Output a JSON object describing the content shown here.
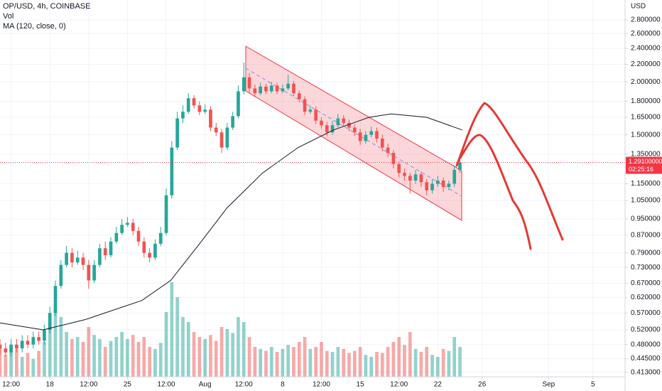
{
  "chart_data": {
    "type": "candlestick",
    "title": "OP/USD, 4h, COINBASE",
    "indicators": [
      "Vol",
      "MA (120, close, 0)"
    ],
    "currency": "USD",
    "x": [
      12.5,
      13,
      13.5,
      14,
      14.5,
      15,
      15.5,
      16,
      16.5,
      17,
      17.5,
      18,
      18.5,
      19,
      19.5,
      20,
      20.5,
      21,
      21.5,
      22,
      22.5,
      23,
      23.5,
      24,
      24.5,
      25,
      25.5,
      26,
      26.5,
      27,
      27.5,
      28,
      28.5,
      29,
      29.5,
      30,
      30.5,
      31,
      31.5,
      32,
      32.5,
      33,
      33.5,
      34,
      34.5,
      35,
      35.5,
      36,
      36.5,
      37,
      37.5,
      38,
      38.5,
      39,
      39.5,
      40,
      40.5,
      41,
      41.5,
      42,
      42.5,
      43,
      43.5,
      44,
      44.5,
      45,
      45.5,
      46,
      46.5,
      47,
      47.5,
      48,
      48.5,
      49,
      49.5,
      50,
      50.5,
      51,
      51.5,
      52,
      52.5,
      53,
      53.5,
      54
    ],
    "open": [
      0.48,
      0.47,
      0.46,
      0.48,
      0.47,
      0.49,
      0.48,
      0.5,
      0.49,
      0.52,
      0.57,
      0.66,
      0.74,
      0.79,
      0.75,
      0.77,
      0.74,
      0.68,
      0.74,
      0.81,
      0.78,
      0.84,
      0.88,
      0.92,
      0.93,
      0.89,
      0.84,
      0.79,
      0.77,
      0.83,
      0.88,
      1.08,
      1.4,
      1.64,
      1.7,
      1.83,
      1.76,
      1.7,
      1.72,
      1.56,
      1.52,
      1.4,
      1.56,
      1.66,
      1.9,
      2.05,
      1.93,
      1.88,
      1.95,
      1.9,
      1.96,
      1.9,
      1.93,
      1.98,
      1.88,
      1.82,
      1.7,
      1.72,
      1.62,
      1.58,
      1.52,
      1.58,
      1.64,
      1.6,
      1.56,
      1.52,
      1.45,
      1.5,
      1.53,
      1.47,
      1.4,
      1.36,
      1.28,
      1.22,
      1.2,
      1.17,
      1.21,
      1.16,
      1.11,
      1.15,
      1.17,
      1.13,
      1.15,
      1.24
    ],
    "high": [
      0.495,
      0.485,
      0.495,
      0.495,
      0.505,
      0.505,
      0.515,
      0.515,
      0.535,
      0.59,
      0.68,
      0.76,
      0.82,
      0.81,
      0.8,
      0.79,
      0.76,
      0.76,
      0.83,
      0.84,
      0.86,
      0.91,
      0.95,
      0.96,
      0.95,
      0.91,
      0.86,
      0.81,
      0.85,
      0.91,
      1.12,
      1.45,
      1.7,
      1.76,
      1.88,
      1.86,
      1.8,
      1.77,
      1.75,
      1.6,
      1.55,
      1.6,
      1.7,
      1.96,
      2.22,
      2.1,
      1.97,
      1.99,
      1.98,
      2.0,
      1.99,
      1.97,
      2.08,
      2.01,
      1.91,
      1.85,
      1.76,
      1.75,
      1.65,
      1.61,
      1.62,
      1.68,
      1.67,
      1.63,
      1.59,
      1.55,
      1.53,
      1.57,
      1.56,
      1.5,
      1.43,
      1.38,
      1.3,
      1.25,
      1.22,
      1.24,
      1.23,
      1.18,
      1.18,
      1.2,
      1.19,
      1.17,
      1.27,
      1.33
    ],
    "low": [
      0.455,
      0.45,
      0.45,
      0.46,
      0.46,
      0.47,
      0.47,
      0.48,
      0.48,
      0.51,
      0.56,
      0.65,
      0.73,
      0.73,
      0.74,
      0.72,
      0.65,
      0.67,
      0.73,
      0.76,
      0.77,
      0.83,
      0.87,
      0.91,
      0.87,
      0.82,
      0.77,
      0.75,
      0.76,
      0.82,
      0.87,
      1.06,
      1.38,
      1.6,
      1.68,
      1.73,
      1.67,
      1.68,
      1.53,
      1.49,
      1.36,
      1.38,
      1.54,
      1.64,
      1.87,
      1.88,
      1.84,
      1.86,
      1.87,
      1.88,
      1.87,
      1.88,
      1.91,
      1.85,
      1.79,
      1.67,
      1.68,
      1.59,
      1.55,
      1.49,
      1.5,
      1.56,
      1.57,
      1.53,
      1.49,
      1.42,
      1.43,
      1.48,
      1.44,
      1.37,
      1.33,
      1.25,
      1.19,
      1.17,
      1.09,
      1.15,
      1.13,
      1.08,
      1.09,
      1.13,
      1.1,
      1.11,
      1.13,
      1.22
    ],
    "close": [
      0.47,
      0.46,
      0.48,
      0.47,
      0.49,
      0.48,
      0.5,
      0.49,
      0.52,
      0.57,
      0.66,
      0.74,
      0.79,
      0.75,
      0.77,
      0.74,
      0.68,
      0.74,
      0.81,
      0.78,
      0.84,
      0.88,
      0.92,
      0.93,
      0.89,
      0.84,
      0.79,
      0.77,
      0.83,
      0.88,
      1.08,
      1.4,
      1.64,
      1.7,
      1.83,
      1.76,
      1.7,
      1.72,
      1.56,
      1.52,
      1.4,
      1.56,
      1.66,
      1.9,
      2.05,
      1.93,
      1.88,
      1.95,
      1.9,
      1.96,
      1.9,
      1.93,
      1.98,
      1.88,
      1.82,
      1.7,
      1.72,
      1.62,
      1.58,
      1.52,
      1.58,
      1.64,
      1.6,
      1.56,
      1.52,
      1.45,
      1.5,
      1.53,
      1.47,
      1.4,
      1.36,
      1.28,
      1.22,
      1.2,
      1.17,
      1.21,
      1.16,
      1.11,
      1.15,
      1.17,
      1.13,
      1.15,
      1.24,
      1.291
    ],
    "volume": [
      30,
      22,
      25,
      28,
      20,
      24,
      18,
      26,
      35,
      55,
      70,
      60,
      45,
      38,
      40,
      35,
      50,
      42,
      38,
      30,
      36,
      40,
      45,
      38,
      42,
      35,
      40,
      30,
      28,
      34,
      65,
      95,
      80,
      60,
      55,
      45,
      40,
      38,
      42,
      36,
      50,
      48,
      44,
      60,
      55,
      40,
      30,
      28,
      26,
      30,
      25,
      28,
      32,
      30,
      35,
      40,
      28,
      30,
      35,
      26,
      25,
      30,
      28,
      24,
      26,
      30,
      22,
      20,
      25,
      24,
      30,
      35,
      40,
      32,
      45,
      28,
      25,
      30,
      22,
      20,
      28,
      26,
      40,
      30
    ],
    "up_color": "#26a69a",
    "down_color": "#ef5350",
    "ma": {
      "x": [
        12.5,
        16.4,
        20.2,
        25.3,
        27.9,
        30.5,
        33.0,
        36.2,
        39.4,
        42.6,
        45.8,
        47.8,
        51.0,
        54.2
      ],
      "values": [
        0.54,
        0.52,
        0.55,
        0.61,
        0.68,
        0.83,
        1.01,
        1.22,
        1.4,
        1.54,
        1.65,
        1.68,
        1.65,
        1.54
      ],
      "color": "#131722"
    },
    "xlim": [
      12.5,
      68.9
    ],
    "ylim": [
      0.403,
      3.12
    ],
    "log_y": true,
    "grid": true,
    "volume_lim": [
      0,
      100
    ],
    "yticks": [
      {
        "value": 2.8,
        "label": "2.800000"
      },
      {
        "value": 2.6,
        "label": "2.600000"
      },
      {
        "value": 2.4,
        "label": "2.400000"
      },
      {
        "value": 2.2,
        "label": "2.200000"
      },
      {
        "value": 2.0,
        "label": "2.000000"
      },
      {
        "value": 1.8,
        "label": "1.800000"
      },
      {
        "value": 1.65,
        "label": "1.650000"
      },
      {
        "value": 1.5,
        "label": "1.500000"
      },
      {
        "value": 1.35,
        "label": "1.350000"
      },
      {
        "value": 1.15,
        "label": "1.150000"
      },
      {
        "value": 1.05,
        "label": "1.050000"
      },
      {
        "value": 0.95,
        "label": "0.950000"
      },
      {
        "value": 0.87,
        "label": "0.870000"
      },
      {
        "value": 0.79,
        "label": "0.790000"
      },
      {
        "value": 0.73,
        "label": "0.730000"
      },
      {
        "value": 0.67,
        "label": "0.670000"
      },
      {
        "value": 0.62,
        "label": "0.620000"
      },
      {
        "value": 0.57,
        "label": "0.570000"
      },
      {
        "value": 0.52,
        "label": "0.520000"
      },
      {
        "value": 0.48,
        "label": "0.480000"
      },
      {
        "value": 0.445,
        "label": "0.445000"
      },
      {
        "value": 0.413,
        "label": "0.413000"
      }
    ],
    "xticks": [
      {
        "value": 13.5,
        "label": "12:00"
      },
      {
        "value": 17,
        "label": "18"
      },
      {
        "value": 20.5,
        "label": "12:00"
      },
      {
        "value": 24,
        "label": "25"
      },
      {
        "value": 27.5,
        "label": "12:00"
      },
      {
        "value": 31,
        "label": "Aug"
      },
      {
        "value": 34.5,
        "label": "12:00"
      },
      {
        "value": 38,
        "label": "8"
      },
      {
        "value": 41.5,
        "label": "12:00"
      },
      {
        "value": 45,
        "label": "15"
      },
      {
        "value": 48.5,
        "label": "12:00"
      },
      {
        "value": 52,
        "label": "22"
      },
      {
        "value": 56,
        "label": "26"
      },
      {
        "value": 62,
        "label": "Sep"
      },
      {
        "value": 66,
        "label": "5"
      }
    ],
    "last_price": 1.291,
    "last_price_label": "1.29100000",
    "countdown": "02:25:16"
  }
}
